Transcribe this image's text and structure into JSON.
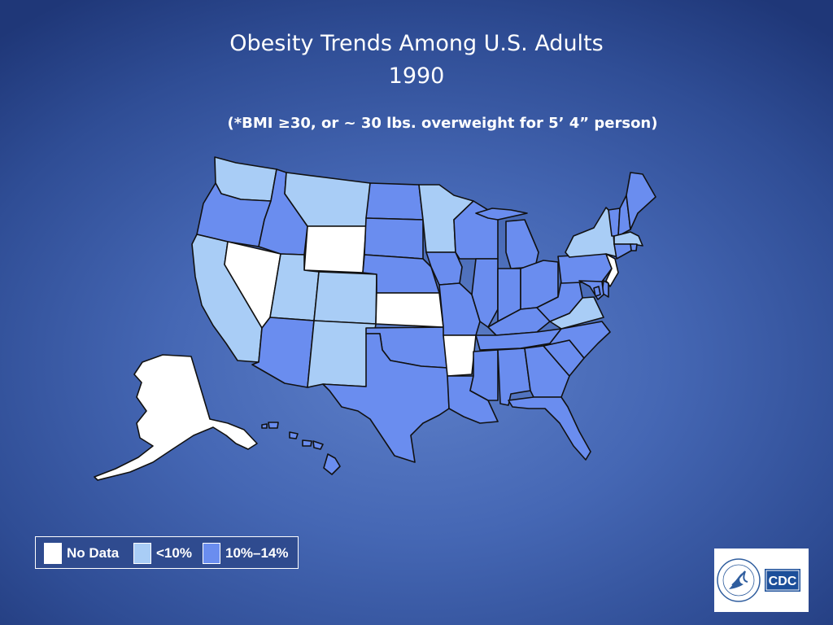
{
  "title_line1": "Obesity Trends Among U.S. Adults",
  "title_line2": "1990",
  "subtitle": "(*BMI ≥30, or ~ 30 lbs. overweight for 5’ 4” person)",
  "colors": {
    "no_data": "#ffffff",
    "lt10": "#a9cdf6",
    "r10_14": "#6a8def",
    "outline": "#111111"
  },
  "legend": [
    {
      "label": "No Data",
      "category": "no_data"
    },
    {
      "label": "<10%",
      "category": "lt10"
    },
    {
      "label": "10%–14%",
      "category": "r10_14"
    }
  ],
  "states": {
    "WA": "lt10",
    "OR": "r10_14",
    "CA": "lt10",
    "NV": "no_data",
    "ID": "r10_14",
    "MT": "lt10",
    "WY": "no_data",
    "UT": "lt10",
    "CO": "lt10",
    "AZ": "r10_14",
    "NM": "lt10",
    "ND": "r10_14",
    "SD": "r10_14",
    "NE": "r10_14",
    "KS": "no_data",
    "OK": "r10_14",
    "TX": "r10_14",
    "MN": "lt10",
    "IA": "r10_14",
    "MO": "r10_14",
    "AR": "no_data",
    "LA": "r10_14",
    "WI": "r10_14",
    "IL": "r10_14",
    "MI": "r10_14",
    "IN": "r10_14",
    "OH": "r10_14",
    "KY": "r10_14",
    "TN": "r10_14",
    "MS": "r10_14",
    "AL": "r10_14",
    "GA": "r10_14",
    "FL": "r10_14",
    "SC": "r10_14",
    "NC": "r10_14",
    "VA": "lt10",
    "WV": "r10_14",
    "PA": "r10_14",
    "NY": "lt10",
    "VT": "r10_14",
    "NH": "r10_14",
    "ME": "r10_14",
    "MA": "lt10",
    "RI": "r10_14",
    "CT": "r10_14",
    "NJ": "no_data",
    "DE": "r10_14",
    "MD": "r10_14",
    "DC": "r10_14",
    "AK": "no_data",
    "HI": "r10_14"
  },
  "logo_text": "CDC"
}
